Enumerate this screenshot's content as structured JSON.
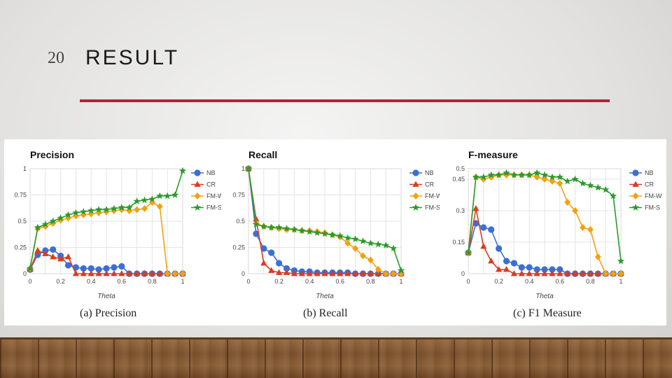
{
  "slide": {
    "number": "20",
    "title": "RESULT"
  },
  "colors": {
    "rule": "#b5213b",
    "NB": "#3b6fd4",
    "CR": "#dc3c1c",
    "FM-W": "#f5a00e",
    "FM-S": "#2b9a2b"
  },
  "chart_data": [
    {
      "type": "line",
      "title": "Precision",
      "xlabel": "Theta",
      "ylabel": "",
      "caption": "(a) Precision",
      "xlim": [
        0,
        1
      ],
      "ylim": [
        0,
        1
      ],
      "xticks": [
        "0",
        "0.2",
        "0.4",
        "0.6",
        "0.8",
        "1"
      ],
      "yticks": [
        "0",
        "0.25",
        "0.5",
        "0.75",
        "1"
      ],
      "legend_position": "right",
      "x": [
        0,
        0.05,
        0.1,
        0.15,
        0.2,
        0.25,
        0.3,
        0.35,
        0.4,
        0.45,
        0.5,
        0.55,
        0.6,
        0.65,
        0.7,
        0.75,
        0.8,
        0.85,
        0.9,
        0.95,
        1
      ],
      "series": [
        {
          "name": "NB",
          "marker": "circle",
          "values": [
            0.04,
            0.18,
            0.22,
            0.23,
            0.17,
            0.08,
            0.06,
            0.05,
            0.05,
            0.04,
            0.05,
            0.06,
            0.07,
            0,
            0,
            0,
            0,
            0,
            0,
            0,
            0
          ]
        },
        {
          "name": "CR",
          "marker": "triangle",
          "values": [
            0.04,
            0.22,
            0.19,
            0.16,
            0.14,
            0.16,
            0,
            0,
            0,
            0,
            0,
            0,
            0,
            0,
            0,
            0,
            0,
            0,
            0,
            0,
            0
          ]
        },
        {
          "name": "FM-W",
          "marker": "diamond",
          "values": [
            0.05,
            0.43,
            0.45,
            0.48,
            0.51,
            0.53,
            0.55,
            0.56,
            0.57,
            0.58,
            0.59,
            0.6,
            0.61,
            0.6,
            0.61,
            0.62,
            0.68,
            0.64,
            0,
            0,
            0
          ]
        },
        {
          "name": "FM-S",
          "marker": "star",
          "values": [
            0.05,
            0.44,
            0.47,
            0.5,
            0.53,
            0.56,
            0.58,
            0.59,
            0.6,
            0.61,
            0.61,
            0.62,
            0.63,
            0.63,
            0.69,
            0.7,
            0.71,
            0.74,
            0.74,
            0.75,
            0.98
          ]
        }
      ]
    },
    {
      "type": "line",
      "title": "Recall",
      "xlabel": "Theta",
      "ylabel": "",
      "caption": "(b) Recall",
      "xlim": [
        0,
        1
      ],
      "ylim": [
        0,
        1
      ],
      "xticks": [
        "0",
        "0.2",
        "0.4",
        "0.6",
        "0.8",
        "1"
      ],
      "yticks": [
        "0",
        "0.25",
        "0.5",
        "0.75",
        "1"
      ],
      "legend_position": "right",
      "x": [
        0,
        0.05,
        0.1,
        0.15,
        0.2,
        0.25,
        0.3,
        0.35,
        0.4,
        0.45,
        0.5,
        0.55,
        0.6,
        0.65,
        0.7,
        0.75,
        0.8,
        0.85,
        0.9,
        0.95,
        1
      ],
      "series": [
        {
          "name": "NB",
          "marker": "circle",
          "values": [
            1,
            0.38,
            0.24,
            0.2,
            0.1,
            0.05,
            0.03,
            0.02,
            0.02,
            0.01,
            0.01,
            0.01,
            0.01,
            0.01,
            0,
            0,
            0,
            0,
            0,
            0,
            0
          ]
        },
        {
          "name": "CR",
          "marker": "triangle",
          "values": [
            1,
            0.52,
            0.1,
            0.03,
            0.01,
            0.01,
            0,
            0,
            0,
            0,
            0,
            0,
            0,
            0,
            0,
            0,
            0,
            0,
            0,
            0,
            0
          ]
        },
        {
          "name": "FM-W",
          "marker": "diamond",
          "values": [
            1,
            0.48,
            0.45,
            0.44,
            0.43,
            0.42,
            0.42,
            0.41,
            0.41,
            0.4,
            0.39,
            0.37,
            0.35,
            0.29,
            0.24,
            0.17,
            0.13,
            0.04,
            0,
            0,
            0
          ]
        },
        {
          "name": "FM-S",
          "marker": "star",
          "values": [
            1,
            0.47,
            0.45,
            0.44,
            0.44,
            0.43,
            0.42,
            0.41,
            0.4,
            0.39,
            0.38,
            0.37,
            0.36,
            0.34,
            0.33,
            0.31,
            0.29,
            0.28,
            0.27,
            0.24,
            0.03
          ]
        }
      ]
    },
    {
      "type": "line",
      "title": "F-measure",
      "xlabel": "Theta",
      "ylabel": "",
      "caption": "(c) F1 Measure",
      "xlim": [
        0,
        1
      ],
      "ylim": [
        0,
        0.5
      ],
      "xticks": [
        "0",
        "0.2",
        "0.4",
        "0.6",
        "0.8",
        "1"
      ],
      "yticks": [
        "0",
        "0.15",
        "0.3",
        "0.45",
        "0.5"
      ],
      "ytick_values": [
        0,
        0.15,
        0.3,
        0.45,
        0.5
      ],
      "legend_position": "right",
      "x": [
        0,
        0.05,
        0.1,
        0.15,
        0.2,
        0.25,
        0.3,
        0.35,
        0.4,
        0.45,
        0.5,
        0.55,
        0.6,
        0.65,
        0.7,
        0.75,
        0.8,
        0.85,
        0.9,
        0.95,
        1
      ],
      "series": [
        {
          "name": "NB",
          "marker": "circle",
          "values": [
            0.1,
            0.24,
            0.22,
            0.21,
            0.12,
            0.06,
            0.05,
            0.03,
            0.03,
            0.02,
            0.02,
            0.02,
            0.02,
            0,
            0,
            0,
            0,
            0,
            0,
            0,
            0
          ]
        },
        {
          "name": "CR",
          "marker": "triangle",
          "values": [
            0.1,
            0.31,
            0.13,
            0.06,
            0.02,
            0.02,
            0,
            0,
            0,
            0,
            0,
            0,
            0,
            0,
            0,
            0,
            0,
            0,
            0,
            0,
            0
          ]
        },
        {
          "name": "FM-W",
          "marker": "diamond",
          "values": [
            0.1,
            0.46,
            0.45,
            0.46,
            0.47,
            0.47,
            0.47,
            0.47,
            0.47,
            0.46,
            0.45,
            0.44,
            0.43,
            0.34,
            0.3,
            0.22,
            0.21,
            0.08,
            0,
            0,
            0
          ]
        },
        {
          "name": "FM-S",
          "marker": "star",
          "values": [
            0.1,
            0.46,
            0.46,
            0.47,
            0.47,
            0.48,
            0.47,
            0.47,
            0.47,
            0.48,
            0.47,
            0.46,
            0.46,
            0.44,
            0.45,
            0.43,
            0.42,
            0.41,
            0.4,
            0.37,
            0.06
          ]
        }
      ]
    }
  ]
}
